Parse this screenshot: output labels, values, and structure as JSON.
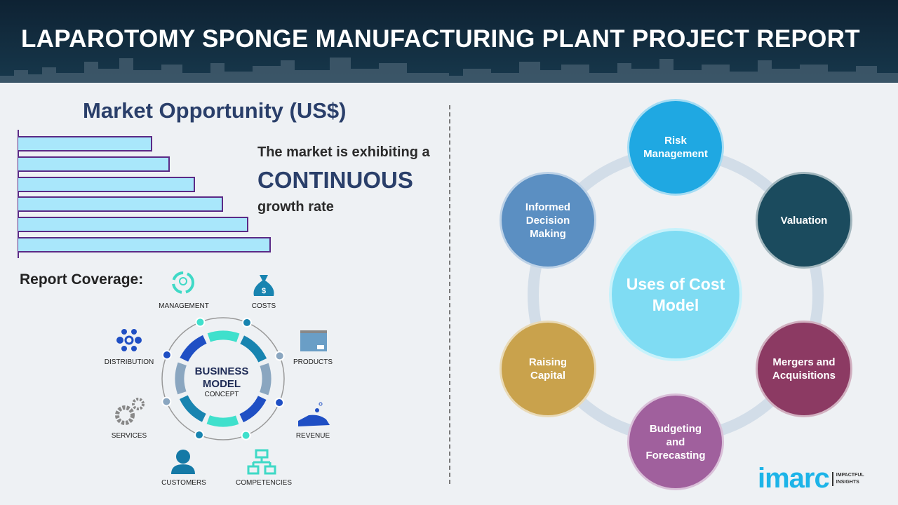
{
  "header": {
    "title": "LAPAROTOMY SPONGE MANUFACTURING PLANT PROJECT REPORT"
  },
  "market": {
    "title": "Market Opportunity (US$)",
    "line1": "The market is exhibiting a",
    "line2": "CONTINUOUS",
    "line3": "growth rate",
    "bars_relative": [
      0.53,
      0.6,
      0.7,
      0.81,
      0.91,
      1.0
    ],
    "bar_color": "#a9e7fb",
    "border_color": "#5b2a86"
  },
  "coverage": {
    "title": "Report Coverage:",
    "center_line1": "BUSINESS",
    "center_line2": "MODEL",
    "center_line3": "CONCEPT",
    "items": [
      {
        "label": "MANAGEMENT",
        "icon": "lightbulb-cycle-icon"
      },
      {
        "label": "COSTS",
        "icon": "money-bag-icon"
      },
      {
        "label": "DISTRIBUTION",
        "icon": "network-icon"
      },
      {
        "label": "PRODUCTS",
        "icon": "box-icon"
      },
      {
        "label": "SERVICES",
        "icon": "gears-icon"
      },
      {
        "label": "REVENUE",
        "icon": "hand-coins-icon"
      },
      {
        "label": "CUSTOMERS",
        "icon": "person-icon"
      },
      {
        "label": "COMPETENCIES",
        "icon": "hierarchy-icon"
      }
    ]
  },
  "uses": {
    "center": "Uses of Cost Model",
    "items": [
      {
        "label": "Risk Management",
        "color": "#1fa8e2"
      },
      {
        "label": "Valuation",
        "color": "#1b4b5e"
      },
      {
        "label": "Mergers and Acquisitions",
        "color": "#8c3a63"
      },
      {
        "label": "Budgeting and Forecasting",
        "color": "#a0609d"
      },
      {
        "label": "Raising Capital",
        "color": "#c9a24c"
      },
      {
        "label": "Informed Decision Making",
        "color": "#5b8fc2"
      }
    ]
  },
  "logo": {
    "word": "imarc",
    "tag1": "IMPACTFUL",
    "tag2": "INSIGHTS"
  }
}
